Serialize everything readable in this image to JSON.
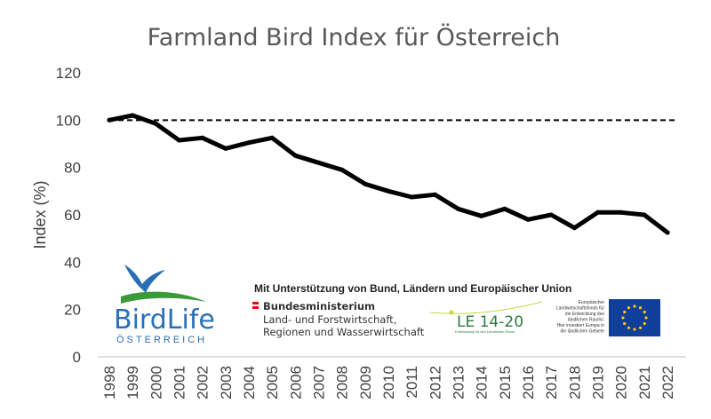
{
  "chart_data": {
    "type": "line",
    "title": "Farmland Bird Index für Österreich",
    "ylabel": "Index (%)",
    "xlabel": "",
    "ylim": [
      0,
      120
    ],
    "yticks": [
      0,
      20,
      40,
      60,
      80,
      100,
      120
    ],
    "grid": false,
    "x": [
      "1998",
      "1999",
      "2000",
      "2001",
      "2002",
      "2003",
      "2004",
      "2005",
      "2006",
      "2007",
      "2008",
      "2009",
      "2010",
      "2011",
      "2012",
      "2013",
      "2014",
      "2015",
      "2016",
      "2017",
      "2018",
      "2019",
      "2020",
      "2021",
      "2022"
    ],
    "series": [
      {
        "values": [
          100,
          102,
          98.5,
          91.5,
          92.5,
          88,
          90.5,
          92.5,
          85,
          82,
          79,
          73,
          70,
          67.5,
          68.5,
          62.5,
          59.5,
          62.5,
          58,
          60,
          54.5,
          61,
          61,
          60,
          52.5
        ]
      }
    ],
    "reference_line": {
      "value": 100,
      "style": "dashed"
    }
  },
  "logos": {
    "birdlife": {
      "word": "BirdLife",
      "sub": "ÖSTERREICH"
    },
    "support_text": "Mit Unterstützung von Bund, Ländern und Europäischer Union",
    "ministry": {
      "line1": "Bundesministerium",
      "line2": "Land- und Forstwirtschaft,",
      "line3": "Regionen und Wasserwirtschaft"
    },
    "le": {
      "label": "LE 14-20",
      "sub": "Entwicklung für den Ländlichen Raum"
    },
    "eu": {
      "text": [
        "Europäischer",
        "Landwirtschaftsfonds für",
        "die Entwicklung des",
        "ländlichen Raums:",
        "Hier investiert Europa in",
        "die ländlichen Gebiete"
      ]
    }
  },
  "colors": {
    "line": "#000000",
    "text": "#404040",
    "title": "#595959",
    "eu_blue": "#0f3e9b",
    "eu_star": "#ffcc00",
    "birdlife_blue": "#2a6fb6",
    "birdlife_green": "#3a9a3a",
    "austria_red": "#e30613"
  }
}
